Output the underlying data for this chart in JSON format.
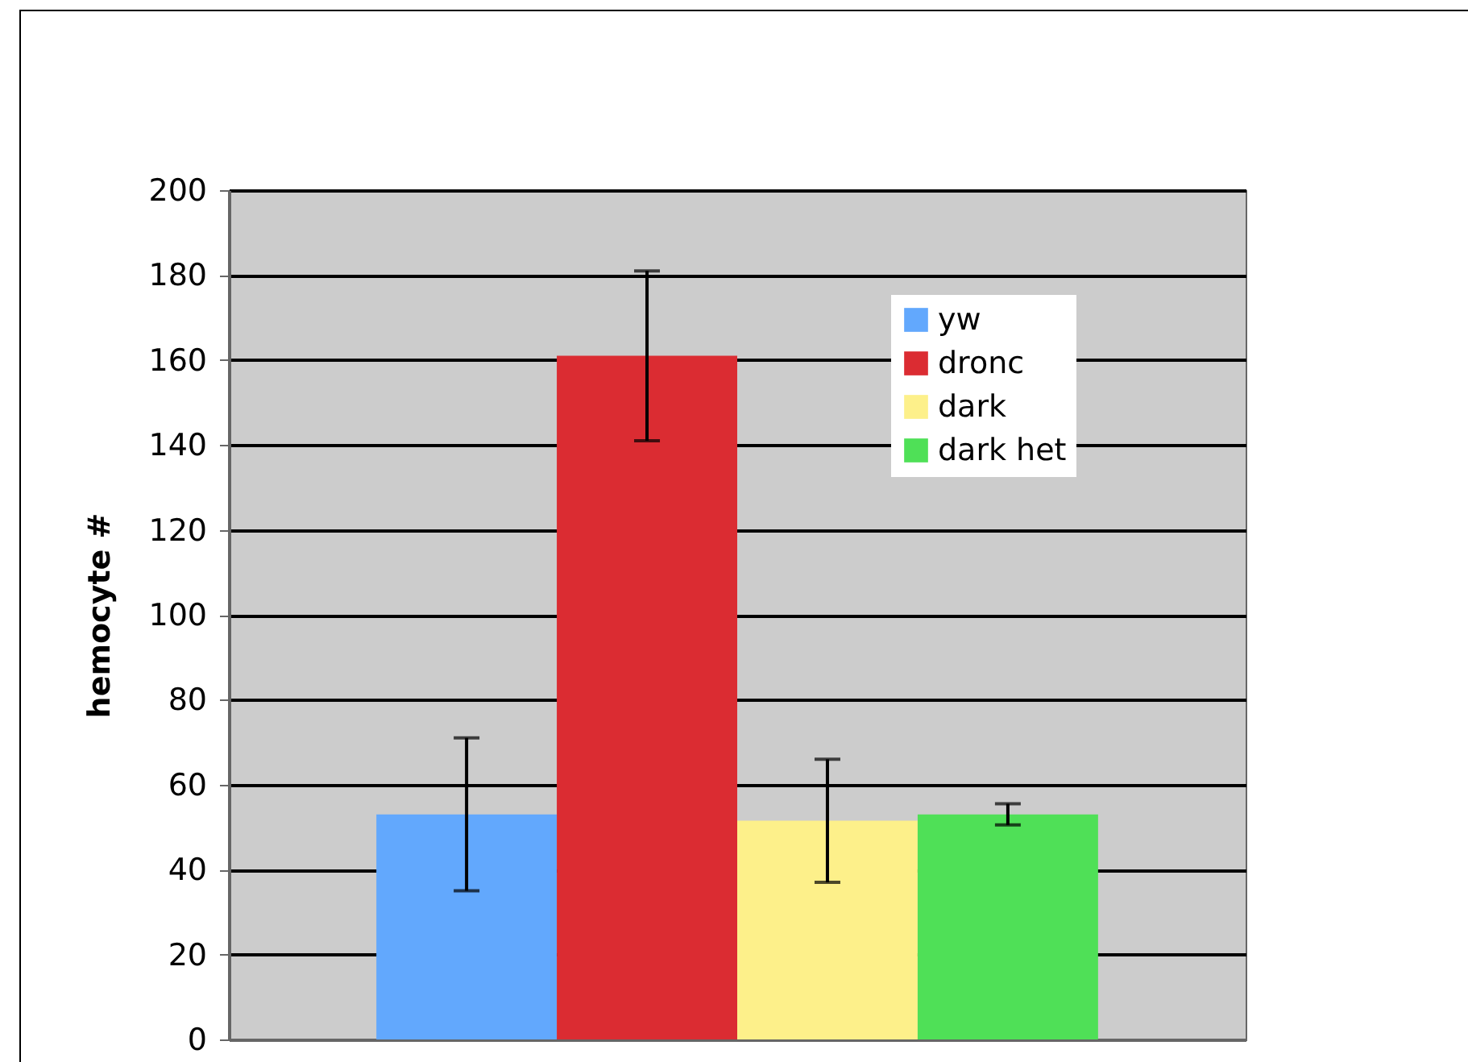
{
  "chart_data": {
    "type": "bar",
    "ylabel": "hemocyte #",
    "categories": [
      null
    ],
    "tick_labels": "y",
    "ylim": [
      0,
      200
    ],
    "yticks": [
      0,
      20,
      40,
      60,
      80,
      100,
      120,
      140,
      160,
      180,
      200
    ],
    "grid": "y",
    "legend": "top right",
    "series": [
      {
        "name": "yw",
        "color": "#62a8fd",
        "values": [
          53
        ],
        "errors": [
          18
        ]
      },
      {
        "name": "dronc",
        "color": "#db2c32",
        "values": [
          161
        ],
        "errors": [
          20
        ]
      },
      {
        "name": "dark",
        "color": "#fdf08a",
        "values": [
          51.5
        ],
        "errors": [
          14.5
        ]
      },
      {
        "name": "dark het",
        "color": "#4fe057",
        "values": [
          53
        ],
        "errors": [
          2.5
        ]
      }
    ]
  }
}
